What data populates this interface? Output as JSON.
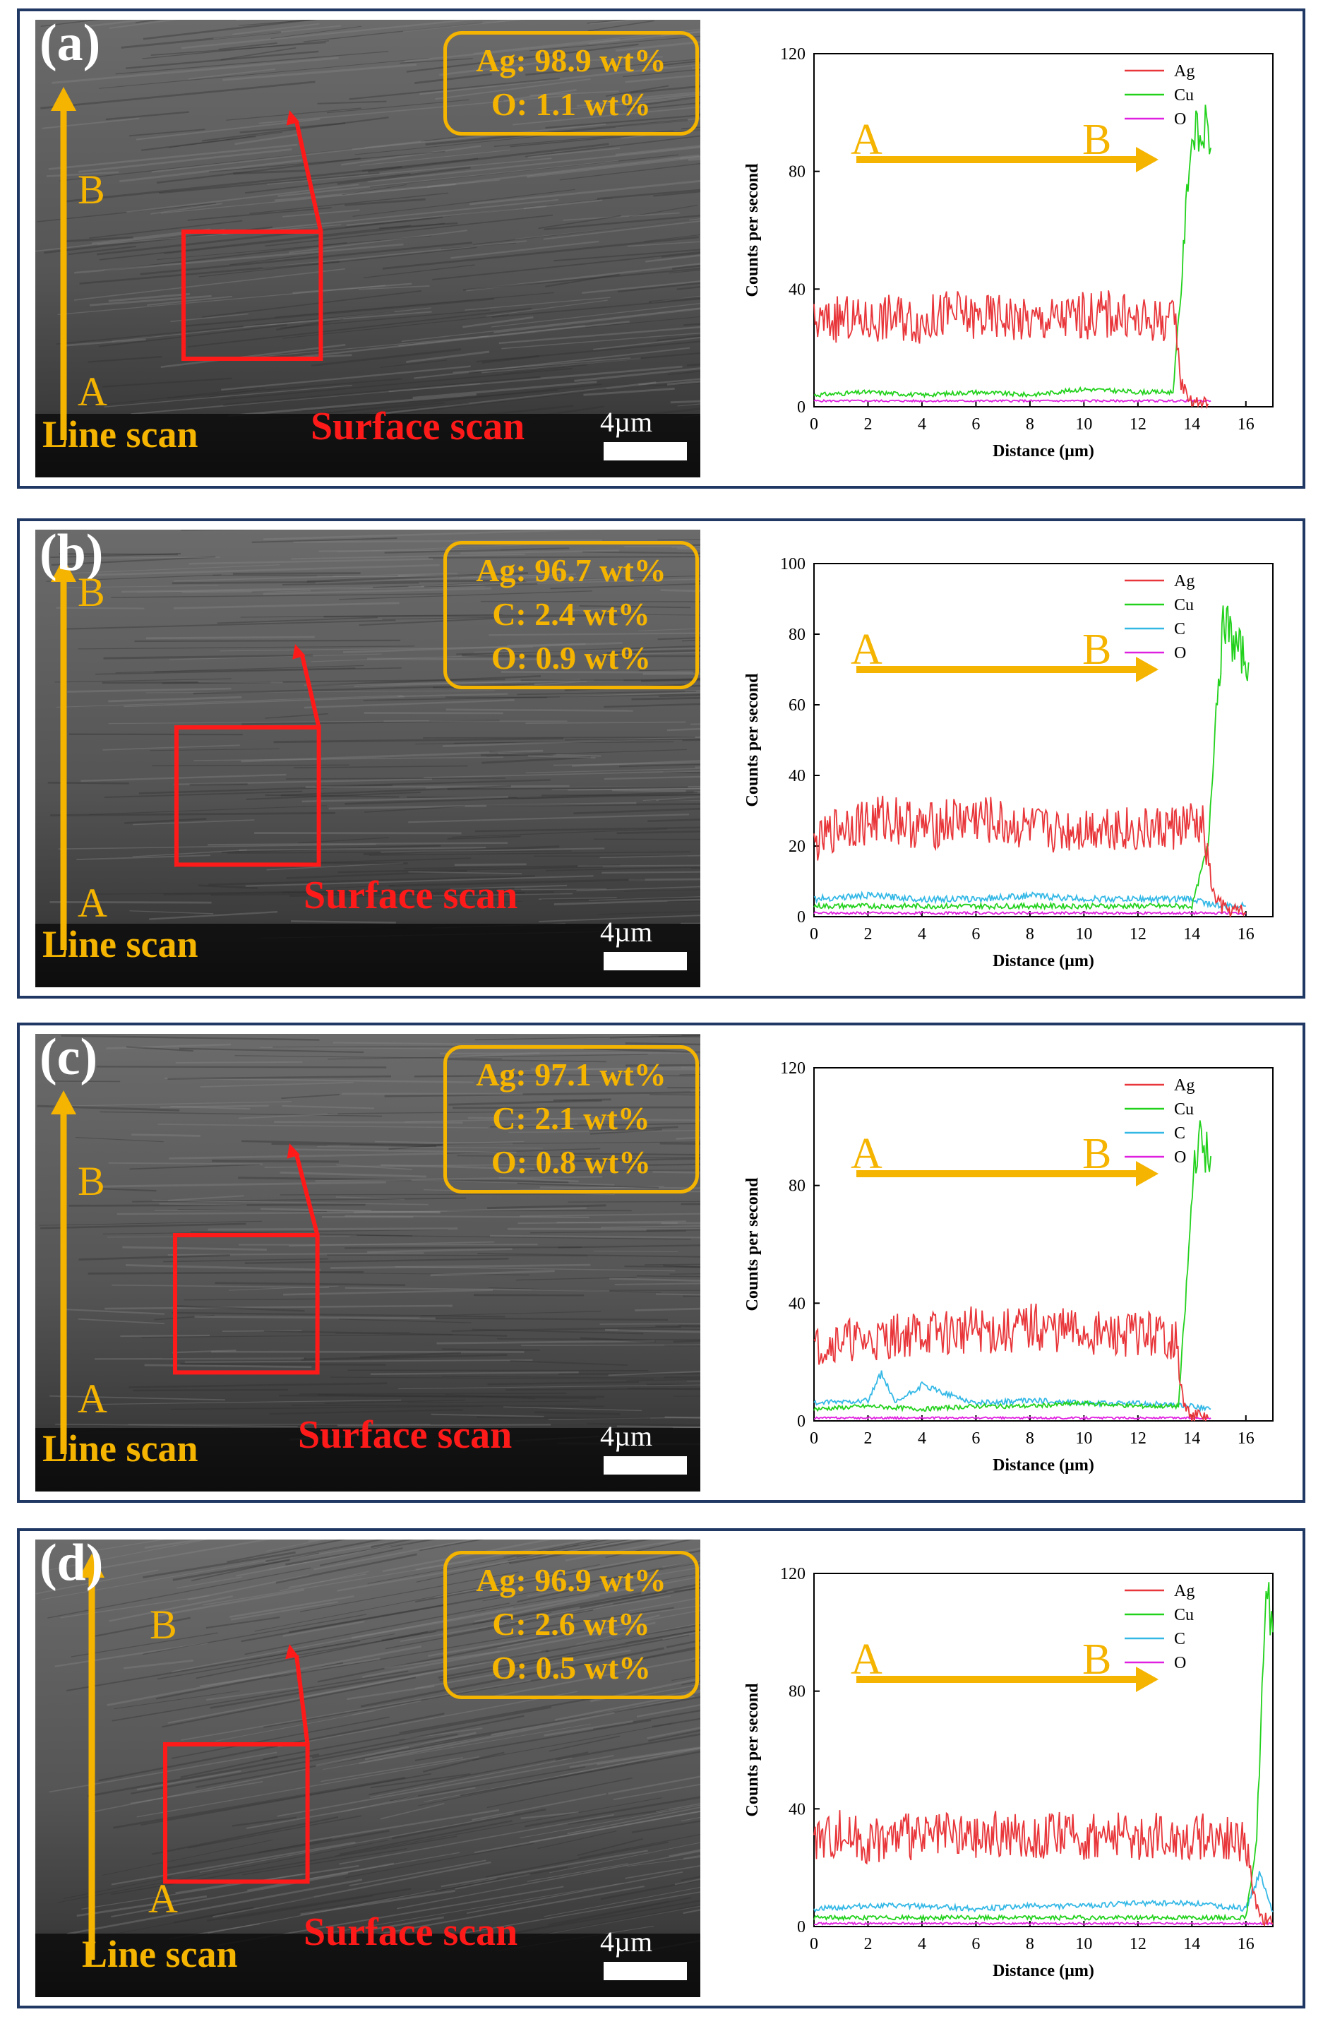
{
  "panels": [
    {
      "label": "(a)",
      "composition": [
        "Ag: 98.9 wt%",
        "O: 1.1 wt%"
      ],
      "line_scan_label": "Line scan",
      "surface_scan_label": "Surface scan",
      "scale_bar": "4µm",
      "point_a": "A",
      "point_b": "B"
    },
    {
      "label": "(b)",
      "composition": [
        "Ag: 96.7 wt%",
        "C: 2.4 wt%",
        "O: 0.9 wt%"
      ],
      "line_scan_label": "Line scan",
      "surface_scan_label": "Surface scan",
      "scale_bar": "4µm",
      "point_a": "A",
      "point_b": "B"
    },
    {
      "label": "(c)",
      "composition": [
        "Ag: 97.1 wt%",
        "C: 2.1 wt%",
        "O: 0.8 wt%"
      ],
      "line_scan_label": "Line scan",
      "surface_scan_label": "Surface scan",
      "scale_bar": "4µm",
      "point_a": "A",
      "point_b": "B"
    },
    {
      "label": "(d)",
      "composition": [
        "Ag: 96.9 wt%",
        "C: 2.6 wt%",
        "O: 0.5 wt%"
      ],
      "line_scan_label": "Line scan",
      "surface_scan_label": "Surface scan",
      "scale_bar": "4µm",
      "point_a": "A",
      "point_b": "B"
    }
  ],
  "colors": {
    "Ag": "#e8363a",
    "Cu": "#22d11c",
    "C": "#33b8e6",
    "O": "#e020e0",
    "annotation": "#f5b400",
    "surface": "#ff1a1a",
    "frame": "#1f3864"
  },
  "chart_data": [
    {
      "type": "line",
      "xlabel": "Distance (µm)",
      "ylabel": "Counts per second",
      "xlim": [
        0,
        17
      ],
      "ylim": [
        0,
        120
      ],
      "xticks": [
        0,
        2,
        4,
        6,
        8,
        10,
        12,
        14,
        16
      ],
      "yticks": [
        0,
        40,
        80,
        120
      ],
      "arrow_start_label": "A",
      "arrow_end_label": "B",
      "legend_position": "top-right",
      "series": [
        {
          "name": "Ag",
          "x": [
            0,
            1,
            2,
            3,
            4,
            5,
            6,
            7,
            8,
            9,
            10,
            11,
            12,
            13,
            13.4,
            13.6,
            14,
            14.6
          ],
          "y": [
            28,
            30,
            29,
            31,
            29,
            32,
            30,
            31,
            29,
            30,
            31,
            32,
            29,
            30,
            28,
            8,
            2,
            1
          ]
        },
        {
          "name": "Cu",
          "x": [
            0,
            2,
            4,
            6,
            8,
            10,
            12,
            13.3,
            13.6,
            13.9,
            14.1,
            14.3,
            14.5,
            14.7
          ],
          "y": [
            4,
            5,
            4,
            5,
            4,
            6,
            5,
            5,
            40,
            85,
            95,
            90,
            95,
            88
          ]
        },
        {
          "name": "O",
          "x": [
            0,
            2,
            4,
            6,
            8,
            10,
            12,
            14,
            14.7
          ],
          "y": [
            2,
            2,
            2,
            2,
            2,
            2,
            2,
            2,
            2
          ]
        }
      ]
    },
    {
      "type": "line",
      "xlabel": "Distance (µm)",
      "ylabel": "Counts per second",
      "xlim": [
        0,
        17
      ],
      "ylim": [
        0,
        100
      ],
      "xticks": [
        0,
        2,
        4,
        6,
        8,
        10,
        12,
        14,
        16
      ],
      "yticks": [
        0,
        20,
        40,
        60,
        80,
        100
      ],
      "arrow_start_label": "A",
      "arrow_end_label": "B",
      "legend_position": "top-right",
      "series": [
        {
          "name": "Ag",
          "x": [
            0,
            1,
            2,
            3,
            4,
            5,
            6,
            7,
            8,
            9,
            10,
            11,
            12,
            13,
            14,
            14.4,
            14.8,
            15.2,
            16
          ],
          "y": [
            20,
            26,
            27,
            28,
            25,
            27,
            28,
            26,
            25,
            24,
            25,
            26,
            24,
            25,
            26,
            25,
            6,
            2,
            1
          ]
        },
        {
          "name": "Cu",
          "x": [
            0,
            2,
            4,
            6,
            8,
            10,
            12,
            14,
            14.6,
            14.9,
            15.2,
            15.5,
            15.8,
            16.1
          ],
          "y": [
            3,
            3,
            3,
            3,
            3,
            3,
            3,
            3,
            20,
            60,
            85,
            78,
            75,
            72
          ]
        },
        {
          "name": "C",
          "x": [
            0,
            2,
            4,
            6,
            8,
            10,
            12,
            14,
            15,
            16
          ],
          "y": [
            5,
            6,
            5,
            5,
            6,
            5,
            5,
            5,
            3,
            3
          ]
        },
        {
          "name": "O",
          "x": [
            0,
            2,
            4,
            6,
            8,
            10,
            12,
            14,
            16
          ],
          "y": [
            1,
            1,
            1,
            1,
            1,
            1,
            1,
            1,
            1
          ]
        }
      ]
    },
    {
      "type": "line",
      "xlabel": "Distance (µm)",
      "ylabel": "Counts per second",
      "xlim": [
        0,
        17
      ],
      "ylim": [
        0,
        120
      ],
      "xticks": [
        0,
        2,
        4,
        6,
        8,
        10,
        12,
        14,
        16
      ],
      "yticks": [
        0,
        40,
        80,
        120
      ],
      "arrow_start_label": "A",
      "arrow_end_label": "B",
      "legend_position": "top-right",
      "series": [
        {
          "name": "Ag",
          "x": [
            0,
            1,
            2,
            3,
            4,
            5,
            6,
            7,
            8,
            9,
            10,
            11,
            12,
            13,
            13.4,
            13.7,
            14,
            14.6
          ],
          "y": [
            25,
            28,
            27,
            29,
            30,
            30,
            31,
            30,
            32,
            31,
            30,
            29,
            30,
            29,
            27,
            5,
            2,
            1
          ]
        },
        {
          "name": "Cu",
          "x": [
            0,
            2,
            4,
            6,
            8,
            10,
            12,
            13.5,
            13.8,
            14.1,
            14.3,
            14.5,
            14.7
          ],
          "y": [
            4,
            5,
            4,
            5,
            5,
            6,
            5,
            5,
            45,
            90,
            95,
            92,
            90
          ]
        },
        {
          "name": "C",
          "x": [
            0,
            2,
            2.5,
            3,
            4,
            6,
            8,
            10,
            12,
            14,
            14.7
          ],
          "y": [
            6,
            7,
            16,
            6,
            12,
            6,
            7,
            6,
            6,
            5,
            4
          ]
        },
        {
          "name": "O",
          "x": [
            0,
            2,
            4,
            6,
            8,
            10,
            12,
            14,
            14.7
          ],
          "y": [
            1,
            1,
            1,
            1,
            1,
            1,
            1,
            1,
            1
          ]
        }
      ]
    },
    {
      "type": "line",
      "xlabel": "Distance (µm)",
      "ylabel": "Counts per second",
      "xlim": [
        0,
        17
      ],
      "ylim": [
        0,
        120
      ],
      "xticks": [
        0,
        2,
        4,
        6,
        8,
        10,
        12,
        14,
        16
      ],
      "yticks": [
        0,
        40,
        80,
        120
      ],
      "arrow_start_label": "A",
      "arrow_end_label": "B",
      "legend_position": "top-right",
      "series": [
        {
          "name": "Ag",
          "x": [
            0,
            1,
            2,
            3,
            4,
            5,
            6,
            7,
            8,
            9,
            10,
            11,
            12,
            13,
            14,
            15,
            16,
            16.3,
            16.6,
            17
          ],
          "y": [
            30,
            32,
            29,
            31,
            30,
            31,
            30,
            32,
            30,
            31,
            30,
            31,
            30,
            31,
            30,
            31,
            28,
            10,
            3,
            1
          ]
        },
        {
          "name": "Cu",
          "x": [
            0,
            2,
            4,
            6,
            8,
            10,
            12,
            14,
            16,
            16.4,
            16.6,
            16.8,
            17
          ],
          "y": [
            3,
            3,
            3,
            3,
            3,
            3,
            3,
            3,
            3,
            30,
            80,
            115,
            100
          ]
        },
        {
          "name": "C",
          "x": [
            0,
            2,
            4,
            6,
            8,
            10,
            12,
            14,
            15,
            16,
            16.5,
            17
          ],
          "y": [
            6,
            7,
            7,
            6,
            7,
            7,
            8,
            8,
            7,
            6,
            18,
            5
          ]
        },
        {
          "name": "O",
          "x": [
            0,
            2,
            4,
            6,
            8,
            10,
            12,
            14,
            16,
            17
          ],
          "y": [
            1,
            1,
            1,
            1,
            1,
            1,
            1,
            1,
            1,
            1
          ]
        }
      ]
    }
  ]
}
